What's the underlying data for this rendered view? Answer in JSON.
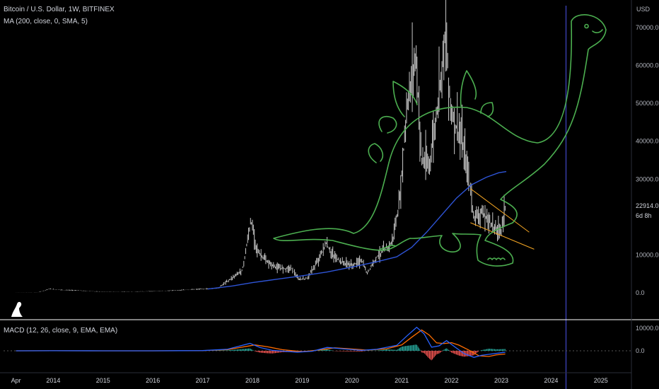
{
  "header": {
    "title": "Bitcoin / U.S. Dollar, 1W, BITFINEX",
    "indicator": "MA (200, close, 0, SMA, 5)",
    "macd_label": "MACD (12, 26, close, 9, EMA, EMA)"
  },
  "colors": {
    "background": "#000000",
    "candle": "#c8c8c8",
    "ma": "#2e54d6",
    "macd": "#2962ff",
    "signal": "#ff6d00",
    "drawing": "#4caf50",
    "wedge": "#f5a623",
    "vline": "#3a3fb0",
    "divider": "#ffffff"
  },
  "chart_data": [
    {
      "type": "line",
      "title": "Bitcoin / U.S. Dollar, 1W, BITFINEX",
      "currency": "USD",
      "ylim": [
        -3000,
        75000
      ],
      "xlim": [
        2013.0,
        2025.6
      ],
      "y_ticks": [
        "70000.0",
        "60000.0",
        "50000.0",
        "40000.0",
        "30000.0",
        "10000.0",
        "0.0"
      ],
      "y_tick_values": [
        70000,
        60000,
        50000,
        40000,
        30000,
        10000,
        0
      ],
      "x_ticks": [
        "Apr",
        "2014",
        "2015",
        "2016",
        "2017",
        "2018",
        "2019",
        "2020",
        "2021",
        "2022",
        "2023",
        "2024",
        "2025"
      ],
      "x_tick_values": [
        2013.25,
        2014,
        2015,
        2016,
        2017,
        2018,
        2019,
        2020,
        2021,
        2022,
        2023,
        2024,
        2025
      ],
      "price_label": "22914.0",
      "countdown_label": "6d 8h",
      "last_price": 22914,
      "series": [
        {
          "kind": "price",
          "x": [
            2013.25,
            2013.7,
            2013.92,
            2014.1,
            2014.5,
            2015.0,
            2015.5,
            2016.0,
            2016.5,
            2017.0,
            2017.3,
            2017.6,
            2017.8,
            2017.92,
            2017.97,
            2018.1,
            2018.3,
            2018.5,
            2018.8,
            2018.92,
            2019.1,
            2019.3,
            2019.48,
            2019.6,
            2019.8,
            2020.0,
            2020.2,
            2020.3,
            2020.5,
            2020.8,
            2020.95,
            2021.1,
            2021.28,
            2021.4,
            2021.55,
            2021.7,
            2021.87,
            2022.0,
            2022.2,
            2022.35,
            2022.45,
            2022.6,
            2022.75,
            2022.9,
            2023.0,
            2023.08
          ],
          "y": [
            100,
            150,
            1000,
            800,
            600,
            250,
            300,
            400,
            650,
            1000,
            1200,
            4000,
            6000,
            15000,
            19000,
            11000,
            8000,
            6500,
            6400,
            3500,
            3800,
            8000,
            13000,
            10000,
            8000,
            7200,
            8500,
            5000,
            9500,
            13000,
            23000,
            48000,
            63000,
            35000,
            33000,
            47000,
            68000,
            47000,
            40000,
            30000,
            20000,
            21000,
            19000,
            16500,
            16600,
            22914
          ]
        },
        {
          "kind": "ma",
          "name": "MA (200, close, 0, SMA, 5)",
          "x": [
            2017.1,
            2017.6,
            2018.0,
            2018.5,
            2019.0,
            2019.5,
            2020.0,
            2020.5,
            2020.9,
            2021.2,
            2021.5,
            2021.8,
            2022.1,
            2022.4,
            2022.7,
            2022.95,
            2023.1
          ],
          "y": [
            1000,
            1800,
            2700,
            3600,
            4500,
            5500,
            6800,
            8200,
            9500,
            12000,
            16000,
            20500,
            25000,
            28500,
            30500,
            31700,
            32000
          ]
        }
      ]
    },
    {
      "type": "line",
      "title": "MACD (12, 26, close, 9, EMA, EMA)",
      "ylim": [
        -3500,
        11000
      ],
      "y_ticks": [
        "10000.0",
        "0.0"
      ],
      "y_tick_values": [
        10000,
        0
      ],
      "series": [
        {
          "kind": "macd",
          "x": [
            2013.25,
            2014.0,
            2015.0,
            2016.0,
            2017.0,
            2017.5,
            2017.95,
            2018.15,
            2018.4,
            2018.9,
            2019.2,
            2019.5,
            2019.8,
            2020.2,
            2020.5,
            2020.9,
            2021.1,
            2021.3,
            2021.45,
            2021.6,
            2021.75,
            2021.9,
            2022.05,
            2022.25,
            2022.45,
            2022.6,
            2022.8,
            2022.95,
            2023.08
          ],
          "y": [
            0,
            50,
            0,
            0,
            100,
            700,
            3300,
            1500,
            200,
            -600,
            -200,
            1500,
            900,
            200,
            700,
            2400,
            6500,
            10400,
            7500,
            1600,
            2200,
            4500,
            2000,
            -1200,
            -2900,
            -2000,
            -1400,
            -1000,
            -600
          ]
        },
        {
          "kind": "signal",
          "x": [
            2013.25,
            2014.0,
            2015.0,
            2016.0,
            2017.0,
            2017.5,
            2018.05,
            2018.3,
            2018.6,
            2019.0,
            2019.35,
            2019.65,
            2019.95,
            2020.3,
            2020.7,
            2021.0,
            2021.2,
            2021.4,
            2021.55,
            2021.7,
            2021.85,
            2022.0,
            2022.15,
            2022.35,
            2022.55,
            2022.75,
            2022.9,
            2023.08
          ],
          "y": [
            0,
            40,
            0,
            0,
            80,
            500,
            2600,
            1800,
            500,
            -400,
            400,
            1300,
            900,
            300,
            900,
            2600,
            6000,
            9200,
            7000,
            3500,
            3200,
            3600,
            2500,
            300,
            -2200,
            -2500,
            -1800,
            -1400
          ]
        }
      ]
    }
  ]
}
